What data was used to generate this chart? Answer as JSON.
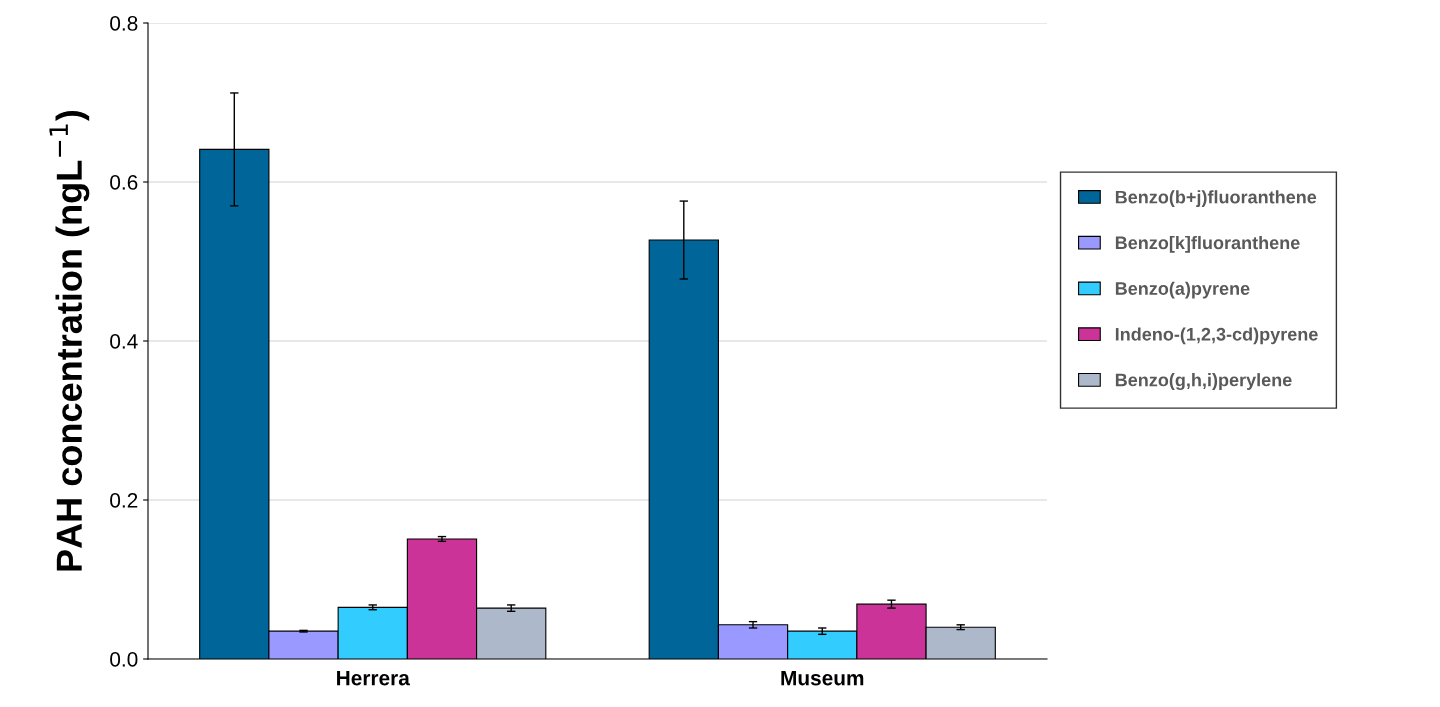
{
  "chart_data": {
    "type": "bar",
    "ylabel": "PAH concentration (ngL$^{−1}$)",
    "categories": [
      "Herrera",
      "Museum"
    ],
    "series": [
      {
        "name": "Benzo(b+j)fluoranthene",
        "color": "#006699",
        "values": [
          0.641,
          0.527
        ],
        "errors": [
          0.071,
          0.049
        ]
      },
      {
        "name": "Benzo[k]fluoranthene",
        "color": "#9999ff",
        "values": [
          0.035,
          0.043
        ],
        "errors": [
          0.001,
          0.004
        ]
      },
      {
        "name": "Benzo(a)pyrene",
        "color": "#33ccff",
        "values": [
          0.065,
          0.035
        ],
        "errors": [
          0.003,
          0.004
        ]
      },
      {
        "name": "Indeno-(1,2,3-cd)pyrene",
        "color": "#cc3399",
        "values": [
          0.151,
          0.069
        ],
        "errors": [
          0.003,
          0.005
        ]
      },
      {
        "name": "Benzo(g,h,i)perylene",
        "color": "#adb9ca",
        "values": [
          0.064,
          0.04
        ],
        "errors": [
          0.004,
          0.003
        ]
      }
    ],
    "ylim": [
      0,
      0.8
    ],
    "yticks": [
      {
        "value": 0,
        "label": "0.0"
      },
      {
        "value": 0.2,
        "label": "0.2"
      },
      {
        "value": 0.4,
        "label": "0.4"
      },
      {
        "value": 0.6,
        "label": "0.6"
      },
      {
        "value": 0.8,
        "label": "0.8"
      }
    ],
    "grid": "y",
    "legend": "right"
  }
}
